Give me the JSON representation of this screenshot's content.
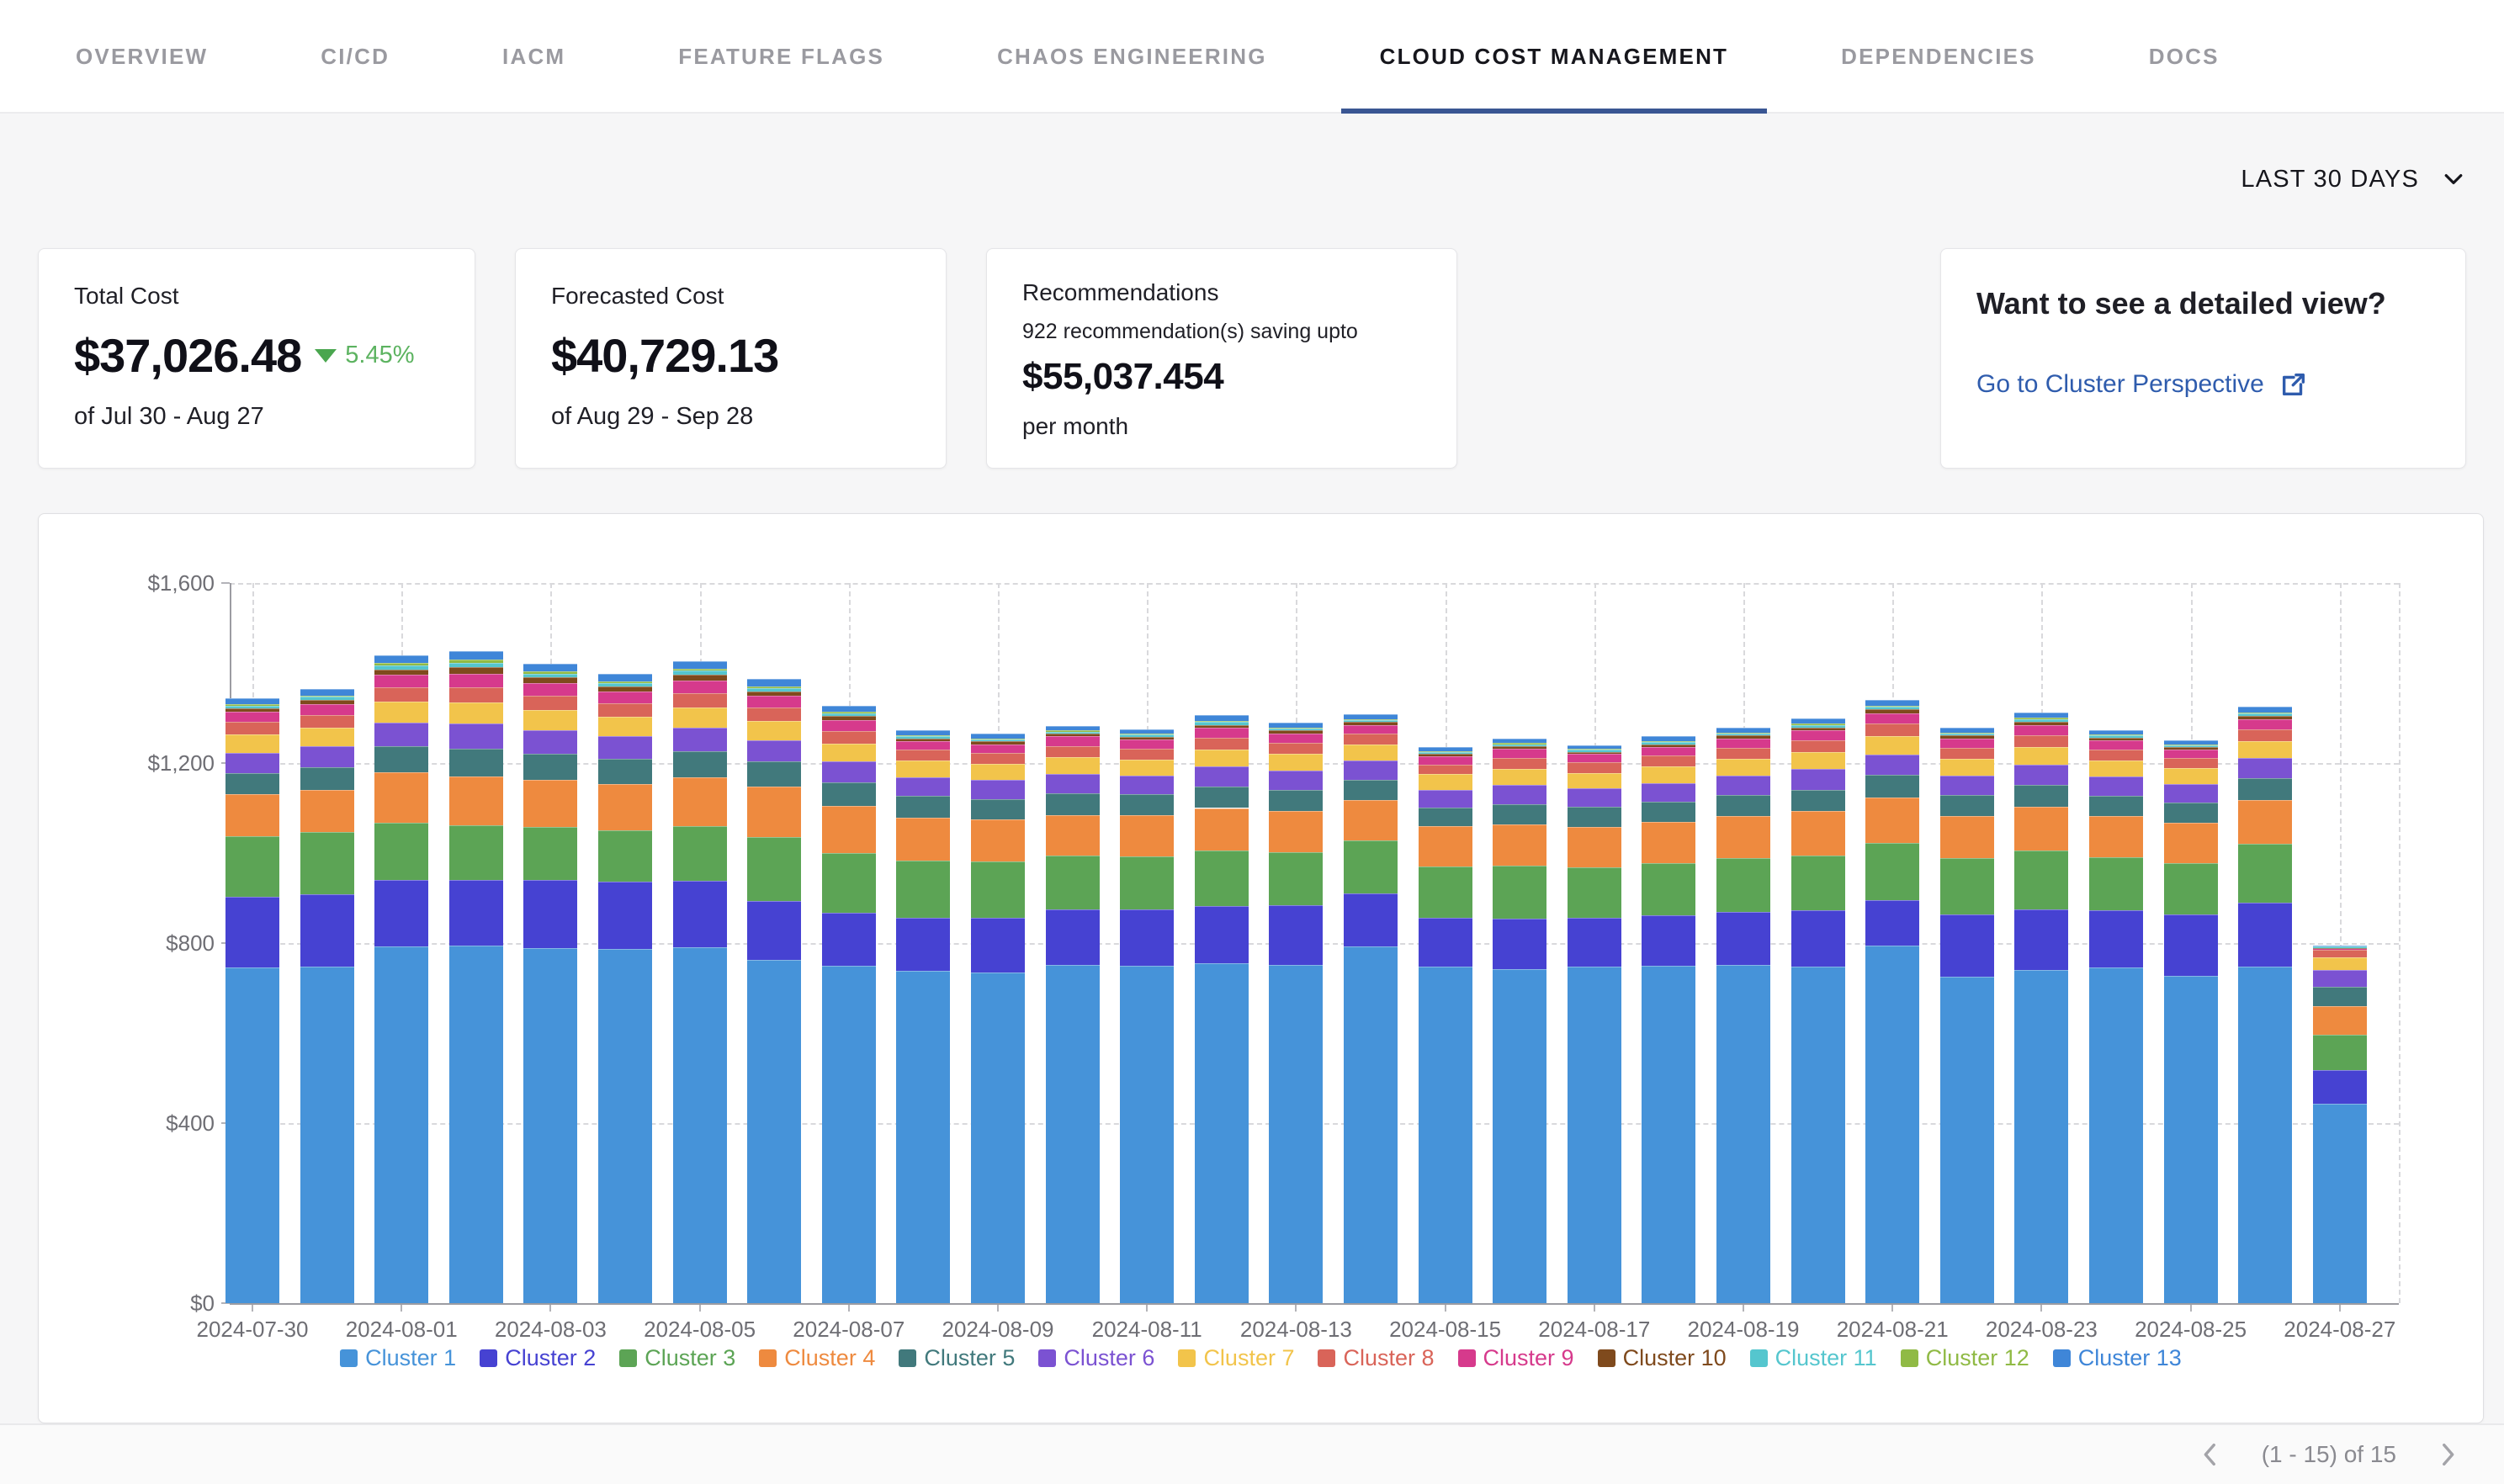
{
  "nav": {
    "tabs": [
      {
        "label": "OVERVIEW",
        "active": false
      },
      {
        "label": "CI/CD",
        "active": false
      },
      {
        "label": "IACM",
        "active": false
      },
      {
        "label": "FEATURE FLAGS",
        "active": false
      },
      {
        "label": "CHAOS ENGINEERING",
        "active": false
      },
      {
        "label": "CLOUD COST MANAGEMENT",
        "active": true
      },
      {
        "label": "DEPENDENCIES",
        "active": false
      },
      {
        "label": "DOCS",
        "active": false
      }
    ],
    "active_underline_color": "#3a5693"
  },
  "filters": {
    "date_range_label": "LAST 30 DAYS"
  },
  "cards": {
    "total_cost": {
      "title": "Total Cost",
      "value": "$37,026.48",
      "delta": "5.45%",
      "delta_direction": "down",
      "delta_color": "#5cb360",
      "period": "of Jul 30 - Aug 27"
    },
    "forecasted_cost": {
      "title": "Forecasted Cost",
      "value": "$40,729.13",
      "period": "of Aug 29 - Sep 28"
    },
    "recommendations": {
      "title": "Recommendations",
      "subtitle": "922 recommendation(s) saving upto",
      "value": "$55,037.454",
      "suffix": "per month"
    },
    "detailed_view": {
      "title": "Want to see a detailed view?",
      "link_label": "Go to Cluster Perspective",
      "link_color": "#2f5cad"
    }
  },
  "chart_data": {
    "type": "bar",
    "stacked": true,
    "ylim": [
      0,
      1600
    ],
    "grid": "dashed",
    "legend_position": "bottom",
    "x_tick_every": 2,
    "y_ticks": [
      {
        "label": "$0",
        "value": 0
      },
      {
        "label": "$400",
        "value": 400
      },
      {
        "label": "$800",
        "value": 800
      },
      {
        "label": "$1,200",
        "value": 1200
      },
      {
        "label": "$1,600",
        "value": 1600
      }
    ],
    "categories": [
      "2024-07-30",
      "2024-07-31",
      "2024-08-01",
      "2024-08-02",
      "2024-08-03",
      "2024-08-04",
      "2024-08-05",
      "2024-08-06",
      "2024-08-07",
      "2024-08-08",
      "2024-08-09",
      "2024-08-10",
      "2024-08-11",
      "2024-08-12",
      "2024-08-13",
      "2024-08-14",
      "2024-08-15",
      "2024-08-16",
      "2024-08-17",
      "2024-08-18",
      "2024-08-19",
      "2024-08-20",
      "2024-08-21",
      "2024-08-22",
      "2024-08-23",
      "2024-08-24",
      "2024-08-25",
      "2024-08-26",
      "2024-08-27"
    ],
    "series": [
      {
        "name": "Cluster 1",
        "color": "#4693d9",
        "values": [
          745,
          748,
          792,
          795,
          788,
          786,
          790,
          762,
          750,
          738,
          735,
          752,
          750,
          755,
          752,
          792,
          748,
          742,
          748,
          750,
          752,
          748,
          795,
          725,
          740,
          745,
          728,
          748,
          443
        ]
      },
      {
        "name": "Cluster 2",
        "color": "#4642d2",
        "values": [
          158,
          160,
          148,
          145,
          152,
          150,
          148,
          132,
          118,
          118,
          122,
          122,
          125,
          128,
          132,
          118,
          108,
          112,
          108,
          112,
          118,
          125,
          100,
          138,
          135,
          128,
          135,
          142,
          74
        ]
      },
      {
        "name": "Cluster 3",
        "color": "#5ca455",
        "values": [
          135,
          138,
          128,
          122,
          118,
          115,
          122,
          142,
          132,
          128,
          125,
          120,
          118,
          122,
          118,
          118,
          115,
          118,
          112,
          115,
          118,
          122,
          128,
          125,
          130,
          118,
          115,
          130,
          79
        ]
      },
      {
        "name": "Cluster 4",
        "color": "#ee8a3f",
        "values": [
          92,
          95,
          112,
          108,
          105,
          102,
          108,
          112,
          105,
          95,
          92,
          90,
          92,
          95,
          92,
          90,
          88,
          92,
          90,
          92,
          95,
          98,
          100,
          95,
          98,
          92,
          90,
          98,
          63
        ]
      },
      {
        "name": "Cluster 5",
        "color": "#41797c",
        "values": [
          48,
          50,
          58,
          62,
          58,
          56,
          58,
          55,
          52,
          48,
          46,
          48,
          45,
          48,
          46,
          45,
          42,
          45,
          44,
          45,
          46,
          48,
          50,
          46,
          48,
          45,
          44,
          48,
          43
        ]
      },
      {
        "name": "Cluster 6",
        "color": "#7b52d2",
        "values": [
          45,
          46,
          52,
          55,
          52,
          50,
          52,
          48,
          46,
          42,
          42,
          44,
          42,
          44,
          43,
          42,
          40,
          42,
          41,
          42,
          43,
          45,
          46,
          43,
          45,
          42,
          41,
          45,
          38
        ]
      },
      {
        "name": "Cluster 7",
        "color": "#f2c44b",
        "values": [
          41,
          42,
          46,
          48,
          45,
          44,
          46,
          42,
          40,
          36,
          36,
          37,
          36,
          38,
          37,
          36,
          34,
          36,
          35,
          36,
          37,
          38,
          40,
          37,
          39,
          36,
          35,
          38,
          28
        ]
      },
      {
        "name": "Cluster 8",
        "color": "#d96459",
        "values": [
          27,
          28,
          32,
          34,
          32,
          30,
          32,
          30,
          28,
          24,
          24,
          25,
          24,
          26,
          25,
          24,
          22,
          24,
          23,
          24,
          25,
          26,
          28,
          25,
          27,
          24,
          23,
          26,
          17
        ]
      },
      {
        "name": "Cluster 9",
        "color": "#d63a8c",
        "values": [
          23,
          24,
          28,
          30,
          28,
          26,
          28,
          26,
          24,
          20,
          20,
          21,
          20,
          22,
          21,
          20,
          18,
          20,
          19,
          20,
          21,
          22,
          24,
          21,
          23,
          20,
          19,
          22,
          3
        ]
      },
      {
        "name": "Cluster 10",
        "color": "#7f4a1d",
        "values": [
          8,
          9,
          12,
          14,
          12,
          11,
          12,
          10,
          9,
          6,
          6,
          6,
          6,
          7,
          6,
          6,
          5,
          6,
          5,
          6,
          6,
          7,
          8,
          6,
          7,
          6,
          5,
          7,
          1
        ]
      },
      {
        "name": "Cluster 11",
        "color": "#55c6ce",
        "values": [
          6,
          7,
          9,
          10,
          9,
          8,
          9,
          8,
          7,
          5,
          5,
          5,
          5,
          6,
          5,
          5,
          4,
          5,
          4,
          5,
          5,
          6,
          6,
          5,
          6,
          5,
          5,
          6,
          4
        ]
      },
      {
        "name": "Cluster 12",
        "color": "#90ba45",
        "values": [
          2,
          3,
          5,
          6,
          5,
          4,
          5,
          4,
          3,
          2,
          2,
          2,
          2,
          3,
          2,
          2,
          2,
          2,
          2,
          2,
          2,
          3,
          3,
          2,
          3,
          2,
          2,
          3,
          1
        ]
      },
      {
        "name": "Cluster 13",
        "color": "#3f86d8",
        "values": [
          14,
          15,
          18,
          20,
          17,
          16,
          17,
          15,
          13,
          10,
          10,
          10,
          10,
          12,
          10,
          10,
          9,
          10,
          9,
          10,
          10,
          11,
          12,
          10,
          11,
          9,
          9,
          12,
          1
        ]
      }
    ]
  },
  "pagination": {
    "label": "(1 - 15) of 15"
  }
}
